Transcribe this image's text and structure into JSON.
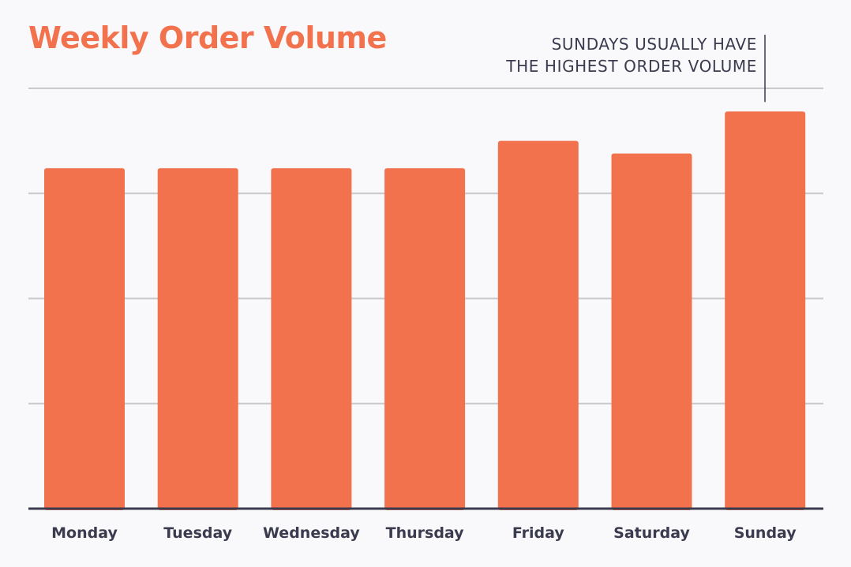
{
  "chart_data": {
    "type": "bar",
    "title": "Weekly Order Volume",
    "categories": [
      "Monday",
      "Tuesday",
      "Wednesday",
      "Thursday",
      "Friday",
      "Saturday",
      "Sunday"
    ],
    "values": [
      81,
      81,
      81,
      81,
      87.5,
      84.5,
      94.5
    ],
    "ylim": [
      0,
      100
    ],
    "y_gridlines": [
      25,
      50,
      75,
      100
    ],
    "y_tick_labels": "none",
    "grid": true,
    "annotation": {
      "target_category": "Sunday",
      "lines": [
        "SUNDAYS USUALLY HAVE",
        "THE HIGHEST ORDER VOLUME"
      ]
    }
  },
  "colors": {
    "bar": "#f1724d",
    "title": "#f1724d",
    "grid": "#c9c9cc",
    "axis": "#3b3b4f",
    "label": "#3b3b4f",
    "background": "#f9f9fb"
  }
}
